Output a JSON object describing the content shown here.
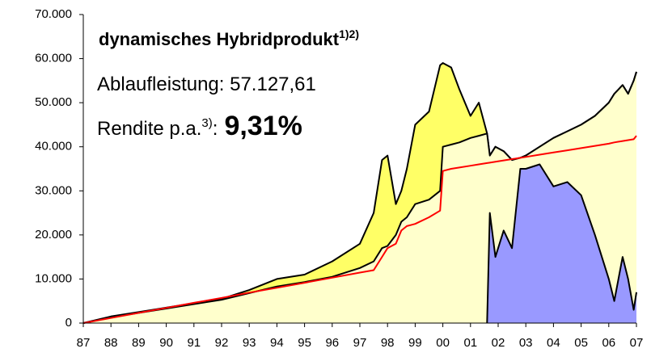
{
  "chart_data": {
    "type": "area",
    "title": "dynamisches Hybridprodukt",
    "title_note": "1)2)",
    "annotations": [
      "Ablaufleistung: 57.127,61",
      "Rendite p.a.",
      "3)",
      ":",
      "9,31%"
    ],
    "x": [
      87,
      88,
      89,
      90,
      91,
      92,
      93,
      94,
      95,
      96,
      97,
      97.5,
      97.8,
      98,
      98.3,
      98.5,
      98.7,
      99,
      99.5,
      99.9,
      100,
      100.3,
      100.6,
      101,
      101.3,
      101.6,
      101.7,
      101.9,
      102.2,
      102.5,
      102.8,
      103,
      103.5,
      104,
      104.5,
      105,
      105.5,
      106,
      106.2,
      106.5,
      106.7,
      106.9,
      107
    ],
    "series": [
      {
        "kind": "area",
        "color": "#ffff66",
        "values": [
          0,
          1500,
          2500,
          3500,
          4500,
          5500,
          7500,
          10000,
          11000,
          14000,
          18000,
          25000,
          37000,
          38000,
          27000,
          30000,
          35000,
          45000,
          48000,
          58500,
          59000,
          58000,
          53000,
          47000,
          50000,
          43000,
          38000,
          40000,
          39000,
          37000,
          37500,
          38000,
          40000,
          42000,
          43500,
          45000,
          47000,
          50000,
          52000,
          54000,
          52000,
          55000,
          57000
        ]
      },
      {
        "kind": "area",
        "color": "#ffffcc",
        "values": [
          0,
          1300,
          2300,
          3300,
          4300,
          5300,
          6800,
          8300,
          9300,
          10500,
          12500,
          14000,
          17000,
          17500,
          20000,
          23000,
          24000,
          27000,
          28000,
          30000,
          40000,
          40500,
          41000,
          42000,
          42500,
          43000,
          38000,
          40000,
          39000,
          37000,
          37500,
          38000,
          40000,
          42000,
          43500,
          45000,
          47000,
          50000,
          52000,
          54000,
          52000,
          55000,
          57000
        ]
      },
      {
        "kind": "area",
        "color": "#9999ff",
        "values": [
          null,
          null,
          null,
          null,
          null,
          null,
          null,
          null,
          null,
          null,
          null,
          null,
          null,
          null,
          null,
          null,
          null,
          null,
          null,
          null,
          null,
          null,
          null,
          null,
          null,
          0,
          25000,
          15000,
          21000,
          17000,
          35000,
          35000,
          36000,
          31000,
          32000,
          29000,
          20000,
          10000,
          5000,
          15000,
          10000,
          3000,
          7000
        ]
      },
      {
        "kind": "line",
        "color": "#ff0000",
        "values": [
          0,
          1150,
          2300,
          3450,
          4600,
          5700,
          6900,
          8000,
          9150,
          10300,
          11450,
          12000,
          15000,
          17000,
          18000,
          21000,
          22000,
          22500,
          24000,
          25500,
          34500,
          35000,
          35300,
          35700,
          36000,
          36300,
          36400,
          36600,
          36900,
          37200,
          37500,
          37700,
          38200,
          38700,
          39200,
          39700,
          40200,
          40700,
          41000,
          41300,
          41500,
          41700,
          42500
        ]
      }
    ],
    "xlim": [
      87,
      107
    ],
    "xticks": [
      87,
      88,
      89,
      90,
      91,
      92,
      93,
      94,
      95,
      96,
      97,
      98,
      99,
      {
        "value": 100,
        "label": "00"
      },
      {
        "value": 101,
        "label": "01"
      },
      {
        "value": 102,
        "label": "02"
      },
      {
        "value": 103,
        "label": "03"
      },
      {
        "value": 104,
        "label": "04"
      },
      {
        "value": 105,
        "label": "05"
      },
      {
        "value": 106,
        "label": "06"
      },
      {
        "value": 107,
        "label": "07"
      }
    ],
    "ylim": [
      0,
      70000
    ],
    "yticks": [
      0,
      {
        "value": 10000,
        "label": "10.000"
      },
      {
        "value": 20000,
        "label": "20.000"
      },
      {
        "value": 30000,
        "label": "30.000"
      },
      {
        "value": 40000,
        "label": "40.000"
      },
      {
        "value": 50000,
        "label": "50.000"
      },
      {
        "value": 60000,
        "label": "60.000"
      },
      {
        "value": 70000,
        "label": "70.000"
      }
    ]
  }
}
